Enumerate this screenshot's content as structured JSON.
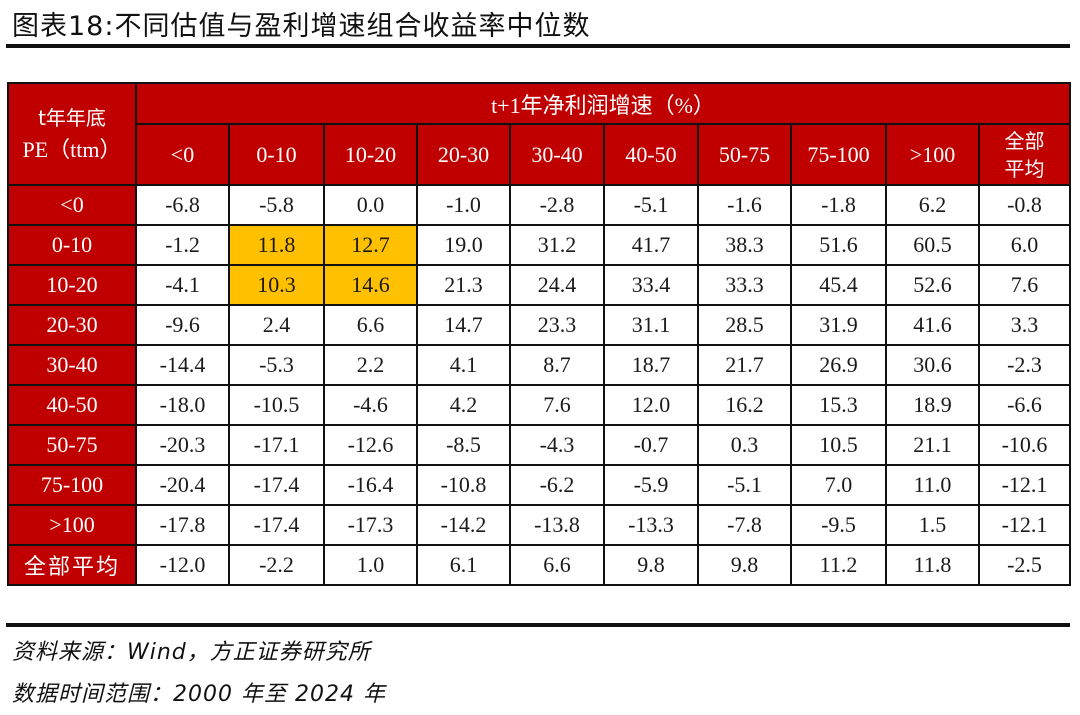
{
  "title": "图表18:不同估值与盈利增速组合收益率中位数",
  "table": {
    "corner_label_line1": "t年年底",
    "corner_label_line2": "PE（ttm）",
    "column_group_label": "t+1年净利润增速（%）",
    "columns": [
      "<0",
      "0-10",
      "10-20",
      "20-30",
      "30-40",
      "40-50",
      "50-75",
      "75-100",
      ">100",
      "全部平均"
    ],
    "last_column_line1": "全部",
    "last_column_line2": "平均",
    "highlight_color": "#ffc000",
    "header_color": "#c00000",
    "rows": [
      {
        "label": "<0",
        "values": [
          "-6.8",
          "-5.8",
          "0.0",
          "-1.0",
          "-2.8",
          "-5.1",
          "-1.6",
          "-1.8",
          "6.2",
          "-0.8"
        ]
      },
      {
        "label": "0-10",
        "values": [
          "-1.2",
          "11.8",
          "12.7",
          "19.0",
          "31.2",
          "41.7",
          "38.3",
          "51.6",
          "60.5",
          "6.0"
        ]
      },
      {
        "label": "10-20",
        "values": [
          "-4.1",
          "10.3",
          "14.6",
          "21.3",
          "24.4",
          "33.4",
          "33.3",
          "45.4",
          "52.6",
          "7.6"
        ]
      },
      {
        "label": "20-30",
        "values": [
          "-9.6",
          "2.4",
          "6.6",
          "14.7",
          "23.3",
          "31.1",
          "28.5",
          "31.9",
          "41.6",
          "3.3"
        ]
      },
      {
        "label": "30-40",
        "values": [
          "-14.4",
          "-5.3",
          "2.2",
          "4.1",
          "8.7",
          "18.7",
          "21.7",
          "26.9",
          "30.6",
          "-2.3"
        ]
      },
      {
        "label": "40-50",
        "values": [
          "-18.0",
          "-10.5",
          "-4.6",
          "4.2",
          "7.6",
          "12.0",
          "16.2",
          "15.3",
          "18.9",
          "-6.6"
        ]
      },
      {
        "label": "50-75",
        "values": [
          "-20.3",
          "-17.1",
          "-12.6",
          "-8.5",
          "-4.3",
          "-0.7",
          "0.3",
          "10.5",
          "21.1",
          "-10.6"
        ]
      },
      {
        "label": "75-100",
        "values": [
          "-20.4",
          "-17.4",
          "-16.4",
          "-10.8",
          "-6.2",
          "-5.9",
          "-5.1",
          "7.0",
          "11.0",
          "-12.1"
        ]
      },
      {
        "label": ">100",
        "values": [
          "-17.8",
          "-17.4",
          "-17.3",
          "-14.2",
          "-13.8",
          "-13.3",
          "-7.8",
          "-9.5",
          "1.5",
          "-12.1"
        ]
      },
      {
        "label": "全部平均",
        "values": [
          "-12.0",
          "-2.2",
          "1.0",
          "6.1",
          "6.6",
          "9.8",
          "9.8",
          "11.2",
          "11.8",
          "-2.5"
        ]
      }
    ],
    "highlighted_cells": [
      [
        1,
        1
      ],
      [
        1,
        2
      ],
      [
        2,
        1
      ],
      [
        2,
        2
      ]
    ]
  },
  "footnotes": {
    "source": "资料来源：Wind，方正证券研究所",
    "range": "数据时间范围：2000 年至 2024 年"
  }
}
